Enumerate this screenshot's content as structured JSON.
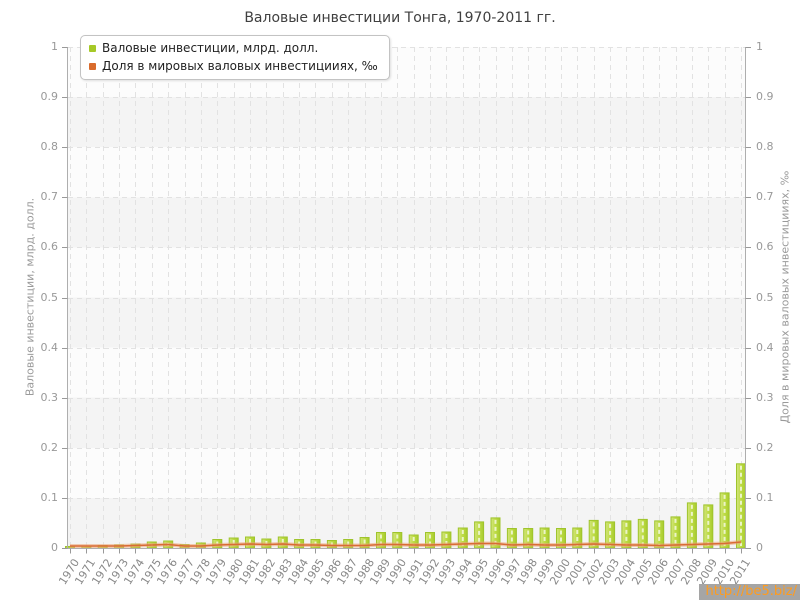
{
  "title": "Валовые инвестиции Тонга, 1970-2011 гг.",
  "legend": [
    {
      "label": "Валовые инвестиции, млрд. долл.",
      "color": "#a6c927"
    },
    {
      "label": "Доля в мировых валовых инвестицииях, ‰",
      "color": "#d96b2c"
    }
  ],
  "watermark": "http://be5.biz/",
  "colors": {
    "bar_fill_light": "#d3e57c",
    "bar_fill_mid": "#bddb45",
    "bar_fill_dark": "#a8cc2e",
    "bar_stroke": "#9fc42c",
    "line_core": "#d96b35",
    "line_halo": "#eda477",
    "grid": "#e2e2e2",
    "axis": "#aeaeae",
    "tick": "#999999"
  },
  "chart_data": {
    "type": "bar",
    "title": "Валовые инвестиции Тонга, 1970-2011 гг.",
    "ylabel_left": "Валовые инвестиции, млрд. долл.",
    "ylabel_right": "Доля в мировых валовых инвестицииях, ‰",
    "ylim": [
      0,
      1
    ],
    "yticks": [
      0,
      0.1,
      0.2,
      0.3,
      0.4,
      0.5,
      0.6,
      0.7,
      0.8,
      0.9,
      1
    ],
    "grid": true,
    "legend_position": "top-left",
    "categories": [
      1970,
      1971,
      1972,
      1973,
      1974,
      1975,
      1976,
      1977,
      1978,
      1979,
      1980,
      1981,
      1982,
      1983,
      1984,
      1985,
      1986,
      1987,
      1988,
      1989,
      1990,
      1991,
      1992,
      1993,
      1994,
      1995,
      1996,
      1997,
      1998,
      1999,
      2000,
      2001,
      2002,
      2003,
      2004,
      2005,
      2006,
      2007,
      2008,
      2009,
      2010,
      2011
    ],
    "series": [
      {
        "name": "Валовые инвестиции, млрд. долл.",
        "type": "bar",
        "values": [
          0.003,
          0.004,
          0.005,
          0.006,
          0.008,
          0.012,
          0.014,
          0.007,
          0.01,
          0.017,
          0.02,
          0.022,
          0.018,
          0.022,
          0.017,
          0.017,
          0.015,
          0.017,
          0.021,
          0.031,
          0.031,
          0.026,
          0.031,
          0.032,
          0.04,
          0.052,
          0.06,
          0.039,
          0.039,
          0.04,
          0.039,
          0.04,
          0.055,
          0.052,
          0.054,
          0.057,
          0.054,
          0.062,
          0.09,
          0.086,
          0.11,
          0.168
        ]
      },
      {
        "name": "Доля в мировых валовых инвестицииях, ‰",
        "type": "line",
        "values": [
          0.004,
          0.004,
          0.004,
          0.004,
          0.005,
          0.006,
          0.007,
          0.004,
          0.004,
          0.006,
          0.007,
          0.008,
          0.007,
          0.008,
          0.006,
          0.006,
          0.005,
          0.005,
          0.005,
          0.007,
          0.007,
          0.006,
          0.006,
          0.007,
          0.008,
          0.009,
          0.009,
          0.006,
          0.007,
          0.006,
          0.006,
          0.007,
          0.008,
          0.007,
          0.006,
          0.006,
          0.005,
          0.006,
          0.007,
          0.008,
          0.009,
          0.012
        ]
      }
    ]
  }
}
